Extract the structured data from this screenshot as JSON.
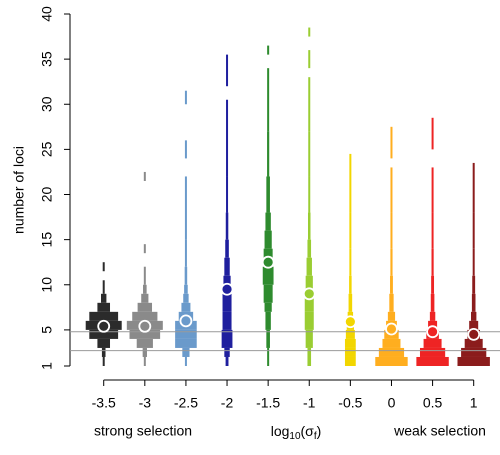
{
  "chart_data": {
    "type": "letter-value",
    "y_label": "number of loci",
    "x_label": [
      "log",
      "10",
      "(σ",
      "f",
      ")"
    ],
    "annotations": [
      "strong selection",
      "weak selection"
    ],
    "annotation_color": "#999999",
    "xlim": [
      -3.91,
      1.32
    ],
    "xticks": [
      -3.5,
      -3,
      -2.5,
      -2,
      -1.5,
      -1,
      -0.5,
      0,
      0.5,
      1
    ],
    "ylim": [
      1,
      40
    ],
    "yticks": [
      1,
      5,
      10,
      15,
      20,
      25,
      30,
      35,
      40
    ],
    "hlines": [
      4.8,
      2.7
    ],
    "hline_color": "#999999",
    "series": [
      {
        "x": -3.5,
        "color": "#2b2b2b",
        "mean": 5.4,
        "bins": [
          1,
          2,
          3,
          4,
          5,
          6,
          7,
          8,
          9,
          10.5,
          11.5,
          12.5
        ],
        "widths": [
          0.05,
          0.1,
          0.35,
          0.8,
          1.0,
          0.8,
          0.35,
          0.15,
          0.05,
          0,
          0.05
        ]
      },
      {
        "x": -3,
        "color": "#8a8a8a",
        "mean": 5.4,
        "bins": [
          1,
          2,
          3,
          4,
          5,
          6,
          7,
          8,
          9,
          10,
          12,
          13.5,
          14.5,
          21.5,
          22.5
        ],
        "widths": [
          0.05,
          0.12,
          0.45,
          0.85,
          1.0,
          0.7,
          0.4,
          0.2,
          0.1,
          0.05,
          0,
          0.05,
          0,
          0.05
        ]
      },
      {
        "x": -2.5,
        "color": "#6a9acb",
        "mean": 6.0,
        "bins": [
          1,
          2,
          3,
          4,
          5,
          6,
          7,
          8,
          9,
          10,
          12,
          15,
          22,
          24,
          26,
          30,
          31.5
        ],
        "widths": [
          0.05,
          0.2,
          0.6,
          0.6,
          0.6,
          0.4,
          0.25,
          0.15,
          0.1,
          0.07,
          0.05,
          0.04,
          0,
          0.04,
          0,
          0.04
        ]
      },
      {
        "x": -2,
        "color": "#1f1f9e",
        "mean": 9.5,
        "bins": [
          1,
          2,
          3,
          5,
          7,
          9,
          11,
          13,
          15,
          18,
          22,
          30.5,
          32,
          35.5
        ],
        "widths": [
          0.08,
          0.15,
          0.3,
          0.25,
          0.25,
          0.2,
          0.15,
          0.1,
          0.07,
          0.05,
          0.03,
          0,
          0.03
        ]
      },
      {
        "x": -1.5,
        "color": "#2e8b2e",
        "mean": 12.5,
        "bins": [
          1,
          3,
          5,
          7,
          8,
          10,
          12,
          14,
          16,
          18,
          22,
          27,
          34,
          35.5,
          36.5
        ],
        "widths": [
          0.05,
          0.1,
          0.15,
          0.2,
          0.25,
          0.3,
          0.25,
          0.2,
          0.15,
          0.1,
          0.06,
          0.04,
          0,
          0.03
        ]
      },
      {
        "x": -1,
        "color": "#9acd32",
        "mean": 9.0,
        "bins": [
          1,
          3,
          5,
          7,
          9,
          11,
          13,
          15,
          18,
          22,
          27,
          33,
          34,
          36,
          37.5,
          38.5
        ],
        "widths": [
          0.1,
          0.2,
          0.25,
          0.25,
          0.2,
          0.15,
          0.1,
          0.07,
          0.05,
          0.04,
          0.03,
          0,
          0.03,
          0,
          0.03
        ]
      },
      {
        "x": -0.5,
        "color": "#f2d600",
        "mean": 5.9,
        "bins": [
          1,
          2,
          3,
          4,
          5,
          6,
          7,
          9,
          11,
          14,
          18,
          24.5
        ],
        "widths": [
          0.3,
          0.3,
          0.3,
          0.25,
          0.2,
          0.15,
          0.1,
          0.07,
          0.05,
          0.04,
          0.03
        ]
      },
      {
        "x": 0,
        "color": "#ffae1f",
        "mean": 5.1,
        "bins": [
          1,
          2,
          3,
          4,
          5,
          6,
          7,
          9,
          11,
          14,
          18,
          23,
          24,
          27.5
        ],
        "widths": [
          0.9,
          0.7,
          0.5,
          0.4,
          0.3,
          0.2,
          0.12,
          0.08,
          0.06,
          0.04,
          0.03,
          0,
          0.03
        ]
      },
      {
        "x": 0.5,
        "color": "#ee2424",
        "mean": 4.8,
        "bins": [
          1,
          2,
          3,
          4,
          5,
          6,
          7,
          9,
          11,
          14,
          18,
          23,
          25,
          28.5
        ],
        "widths": [
          0.9,
          0.7,
          0.5,
          0.35,
          0.25,
          0.15,
          0.1,
          0.08,
          0.06,
          0.04,
          0.03,
          0,
          0.03
        ]
      },
      {
        "x": 1,
        "color": "#8b1c1c",
        "mean": 4.5,
        "bins": [
          1,
          2,
          3,
          4,
          5,
          6,
          7,
          9,
          11,
          14,
          18,
          23.5
        ],
        "widths": [
          0.9,
          0.7,
          0.5,
          0.35,
          0.25,
          0.15,
          0.1,
          0.08,
          0.05,
          0.04,
          0.03
        ]
      }
    ]
  }
}
